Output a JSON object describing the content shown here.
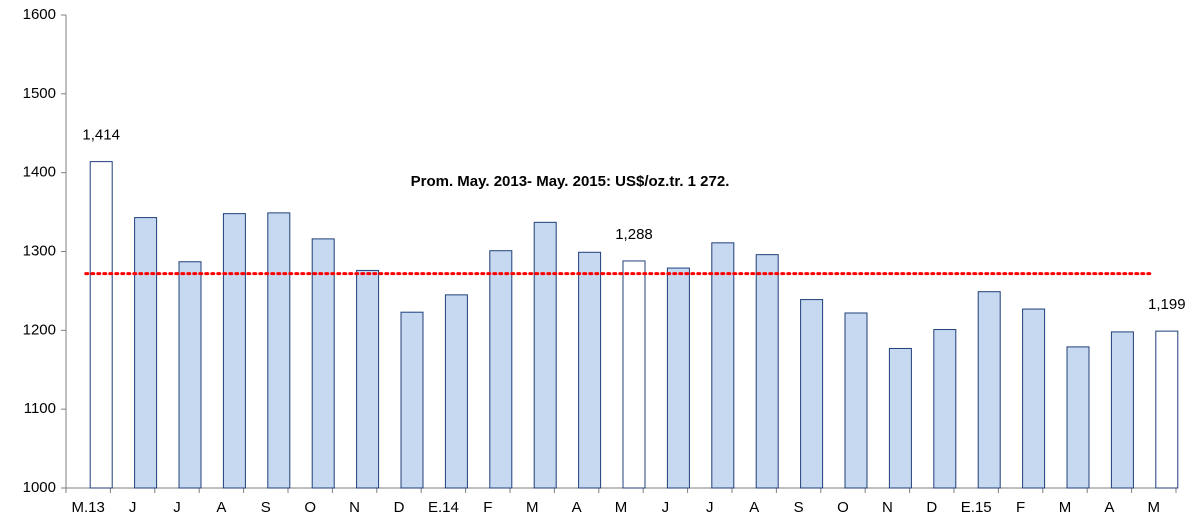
{
  "chart_data": {
    "type": "bar",
    "categories": [
      "M.13",
      "J",
      "J",
      "A",
      "S",
      "O",
      "N",
      "D",
      "E.14",
      "F",
      "M",
      "A",
      "M",
      "J",
      "J",
      "A",
      "S",
      "O",
      "N",
      "D",
      "E.15",
      "F",
      "M",
      "A",
      "M"
    ],
    "values": [
      1414,
      1343,
      1287,
      1348,
      1349,
      1316,
      1276,
      1223,
      1245,
      1301,
      1337,
      1299,
      1288,
      1279,
      1311,
      1296,
      1239,
      1222,
      1177,
      1201,
      1249,
      1227,
      1179,
      1198,
      1199
    ],
    "value_labels": [
      "1,414",
      null,
      null,
      null,
      null,
      null,
      null,
      null,
      null,
      null,
      null,
      null,
      "1,288",
      null,
      null,
      null,
      null,
      null,
      null,
      null,
      null,
      null,
      null,
      null,
      "1,199"
    ],
    "colors": [
      "#ffffff",
      "#c6d9f1",
      "#c6d9f1",
      "#c6d9f1",
      "#c6d9f1",
      "#c6d9f1",
      "#c6d9f1",
      "#c6d9f1",
      "#c6d9f1",
      "#c6d9f1",
      "#c6d9f1",
      "#c6d9f1",
      "#ffffff",
      "#c6d9f1",
      "#c6d9f1",
      "#c6d9f1",
      "#c6d9f1",
      "#c6d9f1",
      "#c6d9f1",
      "#c6d9f1",
      "#c6d9f1",
      "#c6d9f1",
      "#c6d9f1",
      "#c6d9f1",
      "#ffffff"
    ],
    "edge_color": "#1f3f7a",
    "average_line": {
      "value": 1272,
      "color": "#ff0000",
      "label": "Prom. May. 2013- May. 2015: US$/oz.tr. 1 272."
    },
    "ylim": [
      1000,
      1600
    ],
    "yticks": [
      1000,
      1100,
      1200,
      1300,
      1400,
      1500,
      1600
    ],
    "grid": false
  }
}
